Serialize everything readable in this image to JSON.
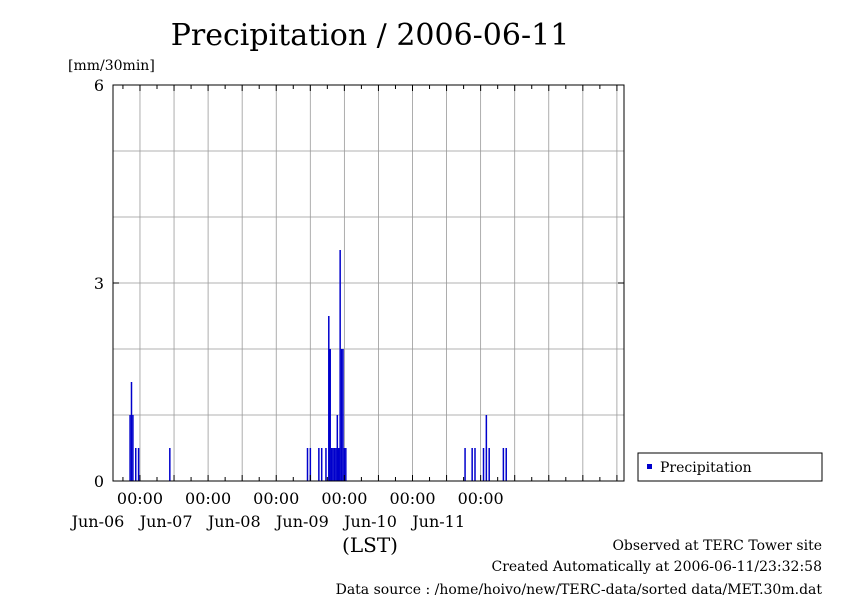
{
  "chart_data": {
    "type": "bar",
    "title": "Precipitation / 2006-06-11",
    "ylabel": "[mm/30min]",
    "xlabel": "(LST)",
    "ylim": [
      0,
      6
    ],
    "y_ticks": [
      0,
      3,
      6
    ],
    "grid": true,
    "legend_placement": "right",
    "x_range_hours": [
      -9.5,
      170.5
    ],
    "x_tick_labels": [
      {
        "hour": 0,
        "time": "00:00",
        "date": "Jun-06"
      },
      {
        "hour": 24,
        "time": "00:00",
        "date": "Jun-07"
      },
      {
        "hour": 48,
        "time": "00:00",
        "date": "Jun-08"
      },
      {
        "hour": 72,
        "time": "00:00",
        "date": "Jun-09"
      },
      {
        "hour": 96,
        "time": "00:00",
        "date": "Jun-10"
      },
      {
        "hour": 120,
        "time": "00:00",
        "date": "Jun-11"
      }
    ],
    "series": [
      {
        "name": "Precipitation",
        "color": "#0000cc",
        "points": [
          {
            "t": -3.5,
            "v": 1.0
          },
          {
            "t": -3.0,
            "v": 1.5
          },
          {
            "t": -2.5,
            "v": 1.0
          },
          {
            "t": -1.5,
            "v": 0.5
          },
          {
            "t": -0.5,
            "v": 0.5
          },
          {
            "t": 10.5,
            "v": 0.5
          },
          {
            "t": 59.0,
            "v": 0.5
          },
          {
            "t": 60.0,
            "v": 0.5
          },
          {
            "t": 63.0,
            "v": 0.5
          },
          {
            "t": 64.0,
            "v": 0.5
          },
          {
            "t": 65.5,
            "v": 0.5
          },
          {
            "t": 66.5,
            "v": 2.5
          },
          {
            "t": 67.0,
            "v": 2.0
          },
          {
            "t": 67.5,
            "v": 0.5
          },
          {
            "t": 68.0,
            "v": 0.5
          },
          {
            "t": 68.5,
            "v": 0.5
          },
          {
            "t": 69.0,
            "v": 0.5
          },
          {
            "t": 69.5,
            "v": 1.0
          },
          {
            "t": 70.0,
            "v": 0.5
          },
          {
            "t": 70.5,
            "v": 3.5
          },
          {
            "t": 71.0,
            "v": 2.0
          },
          {
            "t": 71.5,
            "v": 2.0
          },
          {
            "t": 72.0,
            "v": 0.5
          },
          {
            "t": 72.5,
            "v": 0.5
          },
          {
            "t": 114.5,
            "v": 0.5
          },
          {
            "t": 117.0,
            "v": 0.5
          },
          {
            "t": 118.0,
            "v": 0.5
          },
          {
            "t": 121.0,
            "v": 0.5
          },
          {
            "t": 122.0,
            "v": 1.0
          },
          {
            "t": 123.0,
            "v": 0.5
          },
          {
            "t": 128.0,
            "v": 0.5
          },
          {
            "t": 129.0,
            "v": 0.5
          }
        ]
      }
    ]
  },
  "footer": {
    "line1": "Observed at TERC Tower site",
    "line2": "Created Automatically at 2006-06-11/23:32:58",
    "line3": "Data source : /home/hoivo/new/TERC-data/sorted  data/MET.30m.dat"
  }
}
